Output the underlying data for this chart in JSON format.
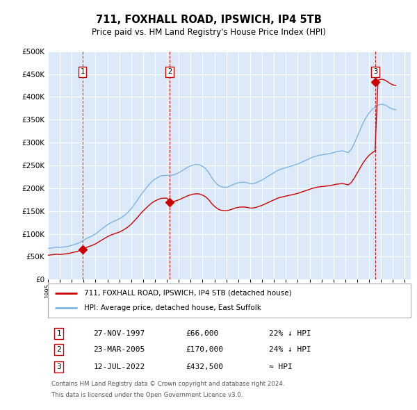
{
  "title": "711, FOXHALL ROAD, IPSWICH, IP4 5TB",
  "subtitle": "Price paid vs. HM Land Registry's House Price Index (HPI)",
  "ylim": [
    0,
    500000
  ],
  "yticks": [
    0,
    50000,
    100000,
    150000,
    200000,
    250000,
    300000,
    350000,
    400000,
    450000,
    500000
  ],
  "ytick_labels": [
    "£0",
    "£50K",
    "£100K",
    "£150K",
    "£200K",
    "£250K",
    "£300K",
    "£350K",
    "£400K",
    "£450K",
    "£500K"
  ],
  "xlim_start": 1995.0,
  "xlim_end": 2025.5,
  "background_color": "#dce9f8",
  "grid_color": "#ffffff",
  "hpi_color": "#7eb3e0",
  "price_color": "#cc0000",
  "sale_dates": [
    1997.9,
    2005.22,
    2022.53
  ],
  "sale_prices": [
    66000,
    170000,
    432500
  ],
  "sale_labels": [
    "1",
    "2",
    "3"
  ],
  "legend_label_red": "711, FOXHALL ROAD, IPSWICH, IP4 5TB (detached house)",
  "legend_label_blue": "HPI: Average price, detached house, East Suffolk",
  "table_rows": [
    [
      "1",
      "27-NOV-1997",
      "£66,000",
      "22% ↓ HPI"
    ],
    [
      "2",
      "23-MAR-2005",
      "£170,000",
      "24% ↓ HPI"
    ],
    [
      "3",
      "12-JUL-2022",
      "£432,500",
      "≈ HPI"
    ]
  ],
  "footer_line1": "Contains HM Land Registry data © Crown copyright and database right 2024.",
  "footer_line2": "This data is licensed under the Open Government Licence v3.0.",
  "hpi_x": [
    1995.0,
    1995.25,
    1995.5,
    1995.75,
    1996.0,
    1996.25,
    1996.5,
    1996.75,
    1997.0,
    1997.25,
    1997.5,
    1997.75,
    1998.0,
    1998.25,
    1998.5,
    1998.75,
    1999.0,
    1999.25,
    1999.5,
    1999.75,
    2000.0,
    2000.25,
    2000.5,
    2000.75,
    2001.0,
    2001.25,
    2001.5,
    2001.75,
    2002.0,
    2002.25,
    2002.5,
    2002.75,
    2003.0,
    2003.25,
    2003.5,
    2003.75,
    2004.0,
    2004.25,
    2004.5,
    2004.75,
    2005.0,
    2005.25,
    2005.5,
    2005.75,
    2006.0,
    2006.25,
    2006.5,
    2006.75,
    2007.0,
    2007.25,
    2007.5,
    2007.75,
    2008.0,
    2008.25,
    2008.5,
    2008.75,
    2009.0,
    2009.25,
    2009.5,
    2009.75,
    2010.0,
    2010.25,
    2010.5,
    2010.75,
    2011.0,
    2011.25,
    2011.5,
    2011.75,
    2012.0,
    2012.25,
    2012.5,
    2012.75,
    2013.0,
    2013.25,
    2013.5,
    2013.75,
    2014.0,
    2014.25,
    2014.5,
    2014.75,
    2015.0,
    2015.25,
    2015.5,
    2015.75,
    2016.0,
    2016.25,
    2016.5,
    2016.75,
    2017.0,
    2017.25,
    2017.5,
    2017.75,
    2018.0,
    2018.25,
    2018.5,
    2018.75,
    2019.0,
    2019.25,
    2019.5,
    2019.75,
    2020.0,
    2020.25,
    2020.5,
    2020.75,
    2021.0,
    2021.25,
    2021.5,
    2021.75,
    2022.0,
    2022.25,
    2022.5,
    2022.75,
    2023.0,
    2023.25,
    2023.5,
    2023.75,
    2024.0,
    2024.25
  ],
  "hpi_y": [
    68000,
    69000,
    70000,
    71000,
    70000,
    71000,
    72000,
    73000,
    75000,
    77000,
    79000,
    82000,
    86000,
    90000,
    93000,
    96000,
    100000,
    105000,
    110000,
    115000,
    120000,
    124000,
    127000,
    130000,
    133000,
    137000,
    142000,
    148000,
    155000,
    164000,
    173000,
    183000,
    192000,
    200000,
    208000,
    215000,
    220000,
    224000,
    227000,
    228000,
    228000,
    228000,
    229000,
    231000,
    234000,
    238000,
    242000,
    246000,
    249000,
    251000,
    252000,
    251000,
    248000,
    243000,
    235000,
    224000,
    215000,
    208000,
    204000,
    202000,
    202000,
    204000,
    207000,
    210000,
    212000,
    213000,
    213000,
    212000,
    210000,
    210000,
    212000,
    215000,
    218000,
    222000,
    226000,
    230000,
    234000,
    238000,
    241000,
    243000,
    245000,
    247000,
    249000,
    251000,
    253000,
    256000,
    259000,
    262000,
    265000,
    268000,
    270000,
    272000,
    273000,
    274000,
    275000,
    276000,
    278000,
    280000,
    281000,
    282000,
    280000,
    278000,
    285000,
    298000,
    313000,
    328000,
    343000,
    355000,
    365000,
    372000,
    378000,
    382000,
    384000,
    383000,
    380000,
    376000,
    373000,
    372000
  ]
}
